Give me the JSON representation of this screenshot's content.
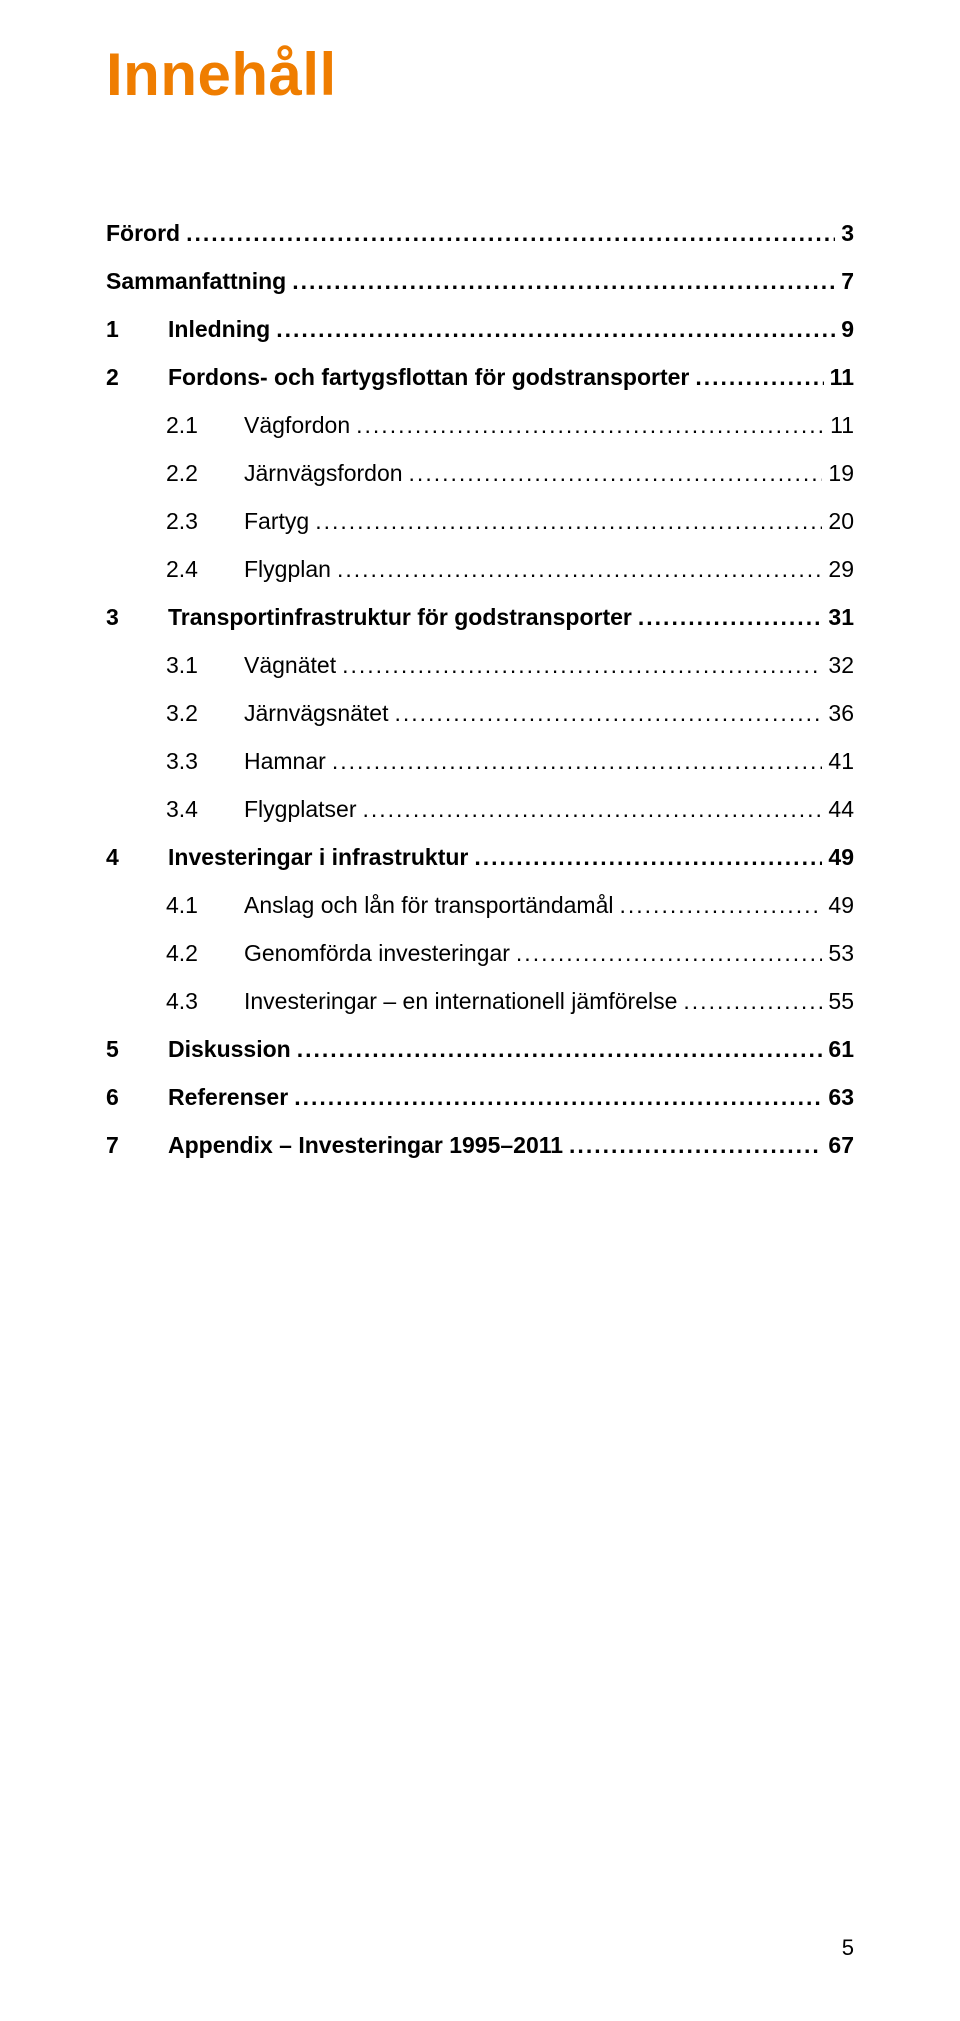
{
  "title": "Innehåll",
  "title_color": "#ef7d00",
  "text_color": "#000000",
  "background_color": "#ffffff",
  "page_number": "5",
  "toc": [
    {
      "num": "",
      "label": "Förord",
      "page": "3",
      "bold": true,
      "level": 0
    },
    {
      "num": "",
      "label": "Sammanfattning",
      "page": "7",
      "bold": true,
      "level": 0
    },
    {
      "num": "1",
      "label": "Inledning",
      "page": "9",
      "bold": true,
      "level": 0
    },
    {
      "num": "2",
      "label": "Fordons- och fartygsflottan för godstransporter",
      "page": "11",
      "bold": true,
      "level": 0
    },
    {
      "num": "2.1",
      "label": "Vägfordon",
      "page": "11",
      "bold": false,
      "level": 1
    },
    {
      "num": "2.2",
      "label": "Järnvägsfordon",
      "page": "19",
      "bold": false,
      "level": 1
    },
    {
      "num": "2.3",
      "label": "Fartyg",
      "page": "20",
      "bold": false,
      "level": 1
    },
    {
      "num": "2.4",
      "label": "Flygplan",
      "page": "29",
      "bold": false,
      "level": 1
    },
    {
      "num": "3",
      "label": "Transportinfrastruktur för godstransporter",
      "page": "31",
      "bold": true,
      "level": 0
    },
    {
      "num": "3.1",
      "label": "Vägnätet",
      "page": "32",
      "bold": false,
      "level": 1
    },
    {
      "num": "3.2",
      "label": "Järnvägsnätet",
      "page": "36",
      "bold": false,
      "level": 1
    },
    {
      "num": "3.3",
      "label": "Hamnar",
      "page": "41",
      "bold": false,
      "level": 1
    },
    {
      "num": "3.4",
      "label": "Flygplatser",
      "page": "44",
      "bold": false,
      "level": 1
    },
    {
      "num": "4",
      "label": "Investeringar i infrastruktur",
      "page": "49",
      "bold": true,
      "level": 0
    },
    {
      "num": "4.1",
      "label": "Anslag och lån för transportändamål",
      "page": "49",
      "bold": false,
      "level": 1
    },
    {
      "num": "4.2",
      "label": "Genomförda investeringar",
      "page": "53",
      "bold": false,
      "level": 1
    },
    {
      "num": "4.3",
      "label": "Investeringar – en internationell jämförelse",
      "page": "55",
      "bold": false,
      "level": 1
    },
    {
      "num": "5",
      "label": "Diskussion",
      "page": "61",
      "bold": true,
      "level": 0
    },
    {
      "num": "6",
      "label": "Referenser",
      "page": "63",
      "bold": true,
      "level": 0
    },
    {
      "num": "7",
      "label": "Appendix – Investeringar 1995–2011",
      "page": "67",
      "bold": true,
      "level": 0
    }
  ]
}
